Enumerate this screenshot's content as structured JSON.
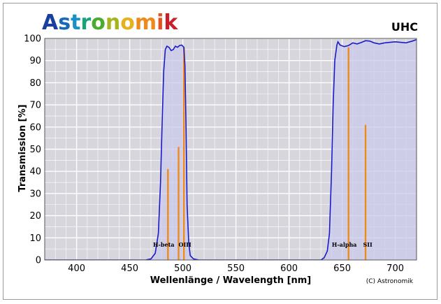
{
  "brand": {
    "name": "Astronomik",
    "letter_colors": [
      "#1b3fa0",
      "#1769b8",
      "#1b8fc6",
      "#1aa37a",
      "#4aab2e",
      "#a7b51d",
      "#e6b11b",
      "#ee8a1b",
      "#e0521f",
      "#c8202a"
    ]
  },
  "filter_name": "UHC",
  "copyright": "(C) Astronomik",
  "chart_data": {
    "type": "line",
    "xlabel": "Wellenlänge / Wavelength [nm]",
    "ylabel": "Transmission [%]",
    "xlim": [
      370,
      720
    ],
    "ylim": [
      0,
      100
    ],
    "xticks": [
      400,
      450,
      500,
      550,
      600,
      650,
      700
    ],
    "yticks": [
      0,
      10,
      20,
      30,
      40,
      50,
      60,
      70,
      80,
      90,
      100
    ],
    "grid": true,
    "colors": {
      "curve": "#1a1acb",
      "fill": "#c9c9ec",
      "emission": "#f08a1c",
      "plot_bg": "#d6d6dc"
    },
    "series": [
      {
        "values": [
          [
            370,
            0
          ],
          [
            465,
            0
          ],
          [
            470,
            0.5
          ],
          [
            474,
            3
          ],
          [
            477,
            12
          ],
          [
            479,
            35
          ],
          [
            480.5,
            62
          ],
          [
            482,
            85
          ],
          [
            483.5,
            95
          ],
          [
            485,
            96.5
          ],
          [
            487,
            96
          ],
          [
            489,
            94.5
          ],
          [
            491,
            95
          ],
          [
            493,
            96.5
          ],
          [
            495,
            96
          ],
          [
            497,
            96.8
          ],
          [
            499,
            97
          ],
          [
            501,
            96
          ],
          [
            502,
            88
          ],
          [
            503,
            60
          ],
          [
            504,
            25
          ],
          [
            505.5,
            8
          ],
          [
            507,
            2
          ],
          [
            510,
            0.5
          ],
          [
            515,
            0
          ],
          [
            630,
            0
          ],
          [
            633,
            1
          ],
          [
            636,
            4
          ],
          [
            638,
            12
          ],
          [
            640,
            40
          ],
          [
            641.5,
            70
          ],
          [
            643,
            90
          ],
          [
            645,
            97
          ],
          [
            646,
            98.5
          ],
          [
            648,
            97
          ],
          [
            652,
            96.3
          ],
          [
            656,
            96.8
          ],
          [
            660,
            98
          ],
          [
            664,
            97.5
          ],
          [
            668,
            98.2
          ],
          [
            672,
            99
          ],
          [
            676,
            98.8
          ],
          [
            680,
            98
          ],
          [
            685,
            97.5
          ],
          [
            690,
            98
          ],
          [
            700,
            98.5
          ],
          [
            710,
            98
          ],
          [
            716,
            98.8
          ],
          [
            720,
            99.5
          ]
        ]
      }
    ],
    "emission_lines": [
      {
        "label": "H-beta",
        "x": 486,
        "y": 41
      },
      {
        "label": "OIII",
        "x": 496,
        "y": 51
      },
      {
        "label": "OIII",
        "x": 501,
        "y": 96
      },
      {
        "label": "H-alpha",
        "x": 656,
        "y": 96
      },
      {
        "label": "SII",
        "x": 672,
        "y": 61
      }
    ],
    "line_labels": [
      {
        "text": "H-beta",
        "x": 482
      },
      {
        "text": "OIII",
        "x": 502
      },
      {
        "text": "H-alpha",
        "x": 652
      },
      {
        "text": "SII",
        "x": 674
      }
    ]
  }
}
